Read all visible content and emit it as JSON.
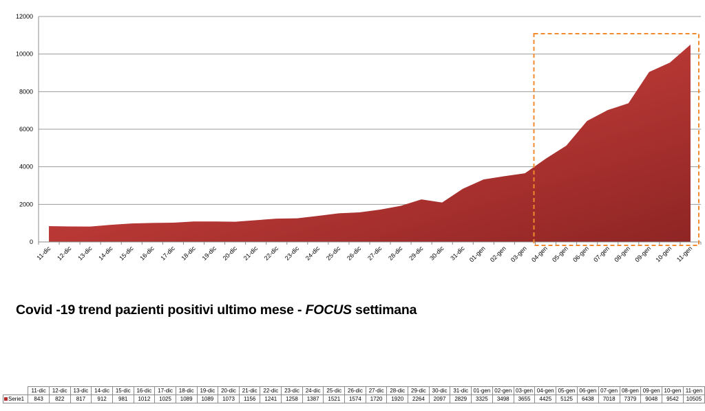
{
  "chart_data": {
    "type": "area",
    "title": "Covid -19 trend pazienti positivi ultimo mese - FOCUS settimana",
    "title_parts": [
      "Covid -19 trend pazienti positivi ultimo mese - ",
      "FOCUS",
      " settimana"
    ],
    "categories": [
      "11-dic",
      "12-dic",
      "13-dic",
      "14-dic",
      "15-dic",
      "16-dic",
      "17-dic",
      "18-dic",
      "19-dic",
      "20-dic",
      "21-dic",
      "22-dic",
      "23-dic",
      "24-dic",
      "25-dic",
      "26-dic",
      "27-dic",
      "28-dic",
      "29-dic",
      "30-dic",
      "31-dic",
      "01-gen",
      "02-gen",
      "03-gen",
      "04-gen",
      "05-gen",
      "06-gen",
      "07-gen",
      "08-gen",
      "09-gen",
      "10-gen",
      "11-gen"
    ],
    "series": [
      {
        "name": "Serie1",
        "values": [
          843,
          822,
          817,
          912,
          981,
          1012,
          1025,
          1089,
          1089,
          1073,
          1156,
          1241,
          1258,
          1387,
          1521,
          1574,
          1720,
          1920,
          2264,
          2097,
          2829,
          3325,
          3498,
          3655,
          4425,
          5125,
          6438,
          7018,
          7379,
          9048,
          9542,
          10505
        ]
      }
    ],
    "yticks": [
      "0",
      "2000",
      "4000",
      "6000",
      "8000",
      "10000",
      "12000"
    ],
    "ylim": [
      0,
      12000
    ],
    "grid": true,
    "fill_color_top": "#e04a45",
    "fill_color_bottom": "#8e2524",
    "highlight": {
      "from": "04-gen",
      "to": "11-gen",
      "color": "#f08a2c",
      "style": "dashed"
    },
    "data_table": true
  }
}
